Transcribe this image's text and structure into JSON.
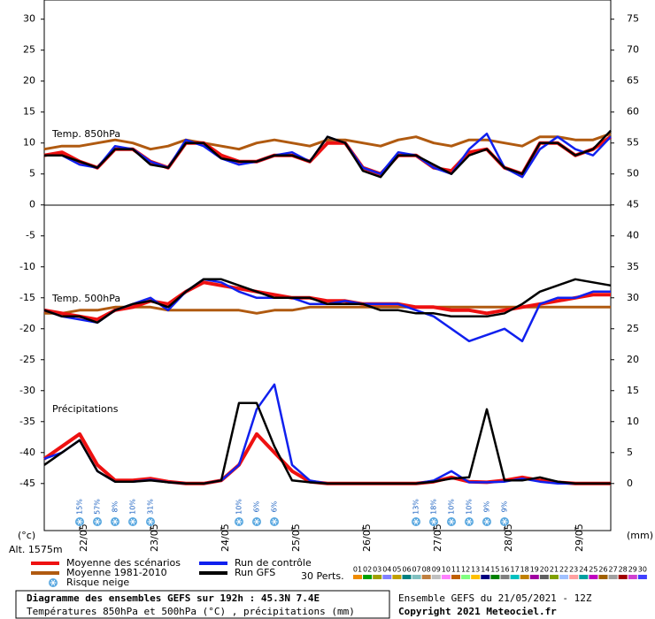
{
  "chart_data": {
    "type": "ensemble",
    "title": "Diagramme des ensembles GEFS sur 192h : 45.3N 7.4E",
    "subtitle": "Températures 850hPa et 500hPa (°C) , précipitations (mm)",
    "run_info": "Ensemble GEFS du 21/05/2021 - 12Z",
    "copyright": "Copyright 2021 Meteociel.fr",
    "panel_labels": [
      "Temp. 850hPa",
      "Temp. 500hPa",
      "Précipitations"
    ],
    "ylabel": "(°c)",
    "altitude": "Alt. 1575m",
    "y2label": "(mm)",
    "x": [
      0,
      6,
      12,
      18,
      24,
      30,
      36,
      42,
      48,
      54,
      60,
      66,
      72,
      78,
      84,
      90,
      96,
      102,
      108,
      114,
      120,
      126,
      132,
      138,
      144,
      150,
      156,
      162,
      168,
      174,
      180,
      186,
      192
    ],
    "xlim": [
      0,
      192
    ],
    "xticks": [
      {
        "value": 12,
        "label": "22/05"
      },
      {
        "value": 36,
        "label": "23/05"
      },
      {
        "value": 60,
        "label": "24/05"
      },
      {
        "value": 84,
        "label": "25/05"
      },
      {
        "value": 108,
        "label": "26/05"
      },
      {
        "value": 132,
        "label": "27/05"
      },
      {
        "value": 156,
        "label": "28/05"
      },
      {
        "value": 180,
        "label": "29/05"
      }
    ],
    "ylim": [
      -52.6,
      33.1
    ],
    "yticks": [
      30,
      25,
      20,
      15,
      10,
      5,
      0,
      -5,
      -10,
      -15,
      -20,
      -25,
      -30,
      -35,
      -40,
      -45
    ],
    "y2lim": [
      -7.6,
      78.1
    ],
    "y2ticks": [
      75,
      70,
      65,
      60,
      55,
      50,
      45,
      40,
      35,
      30,
      25,
      20,
      15,
      10,
      5,
      0
    ],
    "series": [
      {
        "name": "Moyenne des scénarios",
        "color": "#ee1111",
        "t850": [
          8,
          8.5,
          7,
          6,
          9,
          9,
          7,
          6,
          10,
          10,
          8,
          7,
          7,
          8,
          8,
          7,
          10,
          10,
          6,
          5,
          8,
          8,
          6,
          5.5,
          8.5,
          9,
          6,
          5,
          10,
          10,
          8,
          9,
          11
        ],
        "t500": [
          -17,
          -17.5,
          -18,
          -18.5,
          -17,
          -16.5,
          -15.5,
          -16,
          -14,
          -12.5,
          -13,
          -13.5,
          -14,
          -14.5,
          -15,
          -15,
          -15.5,
          -15.5,
          -16,
          -16,
          -16,
          -16.5,
          -16.5,
          -17,
          -17,
          -17.5,
          -17,
          -16.5,
          -16,
          -15.5,
          -15,
          -14.5,
          -14.5
        ],
        "precip": [
          4,
          6,
          8,
          3,
          0.5,
          0.5,
          0.8,
          0.3,
          0,
          0,
          0.5,
          3,
          8,
          5,
          2,
          0.3,
          0,
          0,
          0,
          0,
          0,
          0,
          0.3,
          1,
          0.3,
          0.2,
          0.5,
          1,
          0.5,
          0.2,
          0,
          0,
          0
        ]
      },
      {
        "name": "Moyenne 1981-2010",
        "color": "#b05a10",
        "t850": [
          9,
          9.5,
          9.5,
          10,
          10.5,
          10,
          9,
          9.5,
          10.5,
          10,
          9.5,
          9,
          10,
          10.5,
          10,
          9.5,
          10.5,
          10.5,
          10,
          9.5,
          10.5,
          11,
          10,
          9.5,
          10.5,
          10.5,
          10,
          9.5,
          11,
          11,
          10.5,
          10.5,
          11.5
        ],
        "t500": [
          -17.5,
          -17.5,
          -17,
          -17,
          -16.5,
          -16.5,
          -16.5,
          -17,
          -17,
          -17,
          -17,
          -17,
          -17.5,
          -17,
          -17,
          -16.5,
          -16.5,
          -16.5,
          -16.5,
          -16.5,
          -16.5,
          -16.5,
          -16.5,
          -16.5,
          -16.5,
          -16.5,
          -16.5,
          -16.5,
          -16.5,
          -16.5,
          -16.5,
          -16.5,
          -16.5
        ]
      },
      {
        "name": "Run de contrôle",
        "color": "#1020ee",
        "t850": [
          8,
          8,
          6.5,
          6,
          9.5,
          9,
          7,
          6,
          10.5,
          9.5,
          7.5,
          6.5,
          7,
          8,
          8.5,
          7,
          11,
          10,
          6,
          5,
          8.5,
          8,
          6,
          5,
          9,
          11.5,
          6,
          4.5,
          9,
          11,
          9,
          8,
          11
        ],
        "t500": [
          -17,
          -18,
          -18.5,
          -19,
          -17,
          -16,
          -15,
          -17,
          -14,
          -12,
          -12.5,
          -14,
          -15,
          -15,
          -15,
          -16,
          -16,
          -15.5,
          -16,
          -16,
          -16,
          -17,
          -18,
          -20,
          -22,
          -21,
          -20,
          -22,
          -16,
          -15,
          -15,
          -14,
          -14
        ],
        "precip": [
          4,
          5,
          7,
          2,
          0.3,
          0.3,
          0.6,
          0.2,
          0,
          0,
          0.5,
          3,
          12,
          16,
          3,
          0.5,
          0,
          0,
          0,
          0,
          0,
          0,
          0.5,
          2,
          0.2,
          0.2,
          0.3,
          0.8,
          0.3,
          0,
          0,
          0,
          0
        ]
      },
      {
        "name": "Run GFS",
        "color": "#000000",
        "t850": [
          8,
          8,
          7,
          6,
          9,
          9,
          6.5,
          6,
          10,
          10,
          7.5,
          7,
          7,
          8,
          8,
          7,
          11,
          10,
          5.5,
          4.5,
          8,
          8,
          6.5,
          5,
          8,
          9,
          6,
          5,
          10,
          10,
          8,
          9,
          12
        ],
        "t500": [
          -17,
          -18,
          -18,
          -19,
          -17,
          -16,
          -15.5,
          -16.5,
          -14,
          -12,
          -12,
          -13,
          -14,
          -15,
          -15,
          -15,
          -16,
          -16,
          -16,
          -17,
          -17,
          -17.5,
          -17.5,
          -18,
          -18,
          -18,
          -17.5,
          -16,
          -14,
          -13,
          -12,
          -12.5,
          -13
        ],
        "precip": [
          3,
          5,
          7,
          2,
          0.3,
          0.3,
          0.5,
          0.2,
          0,
          0,
          0.5,
          13,
          13,
          6,
          0.5,
          0.2,
          0,
          0,
          0,
          0,
          0,
          0,
          0.3,
          0.8,
          1,
          12,
          0.5,
          0.5,
          1,
          0.3,
          0,
          0,
          0
        ]
      }
    ],
    "snow_risk": {
      "name": "Risque neige",
      "color": "#5aa8e0",
      "x": [
        12,
        18,
        24,
        30,
        36,
        66,
        72,
        78,
        126,
        132,
        138,
        144,
        150,
        156
      ],
      "values": [
        15,
        57,
        8,
        10,
        31,
        10,
        6,
        6,
        13,
        18,
        10,
        10,
        9,
        9
      ],
      "value_labels": [
        "15%",
        "57%",
        "8%",
        "10%",
        "31%",
        "10%",
        "6%",
        "6%",
        "13%",
        "18%",
        "10%",
        "10%",
        "9%",
        "9%"
      ]
    },
    "perturbations": {
      "label": "30 Perts.",
      "names": [
        "01",
        "02",
        "03",
        "04",
        "05",
        "06",
        "07",
        "08",
        "09",
        "10",
        "11",
        "12",
        "13",
        "14",
        "15",
        "16",
        "17",
        "18",
        "19",
        "20",
        "21",
        "22",
        "23",
        "24",
        "25",
        "26",
        "27",
        "28",
        "29",
        "30"
      ],
      "colors": [
        "#f08c00",
        "#00a000",
        "#a0a000",
        "#8080ff",
        "#c0a000",
        "#008080",
        "#80c0c0",
        "#c08040",
        "#c0c0c0",
        "#ff80ff",
        "#c06000",
        "#80ff80",
        "#ffc000",
        "#000080",
        "#008000",
        "#808080",
        "#00c0c0",
        "#c08000",
        "#a000a0",
        "#606060",
        "#80a000",
        "#a0c0ff",
        "#ffa0a0",
        "#00a0a0",
        "#c000c0",
        "#a06000",
        "#a0a0a0",
        "#a00000",
        "#d040d0",
        "#4040ff"
      ]
    }
  }
}
